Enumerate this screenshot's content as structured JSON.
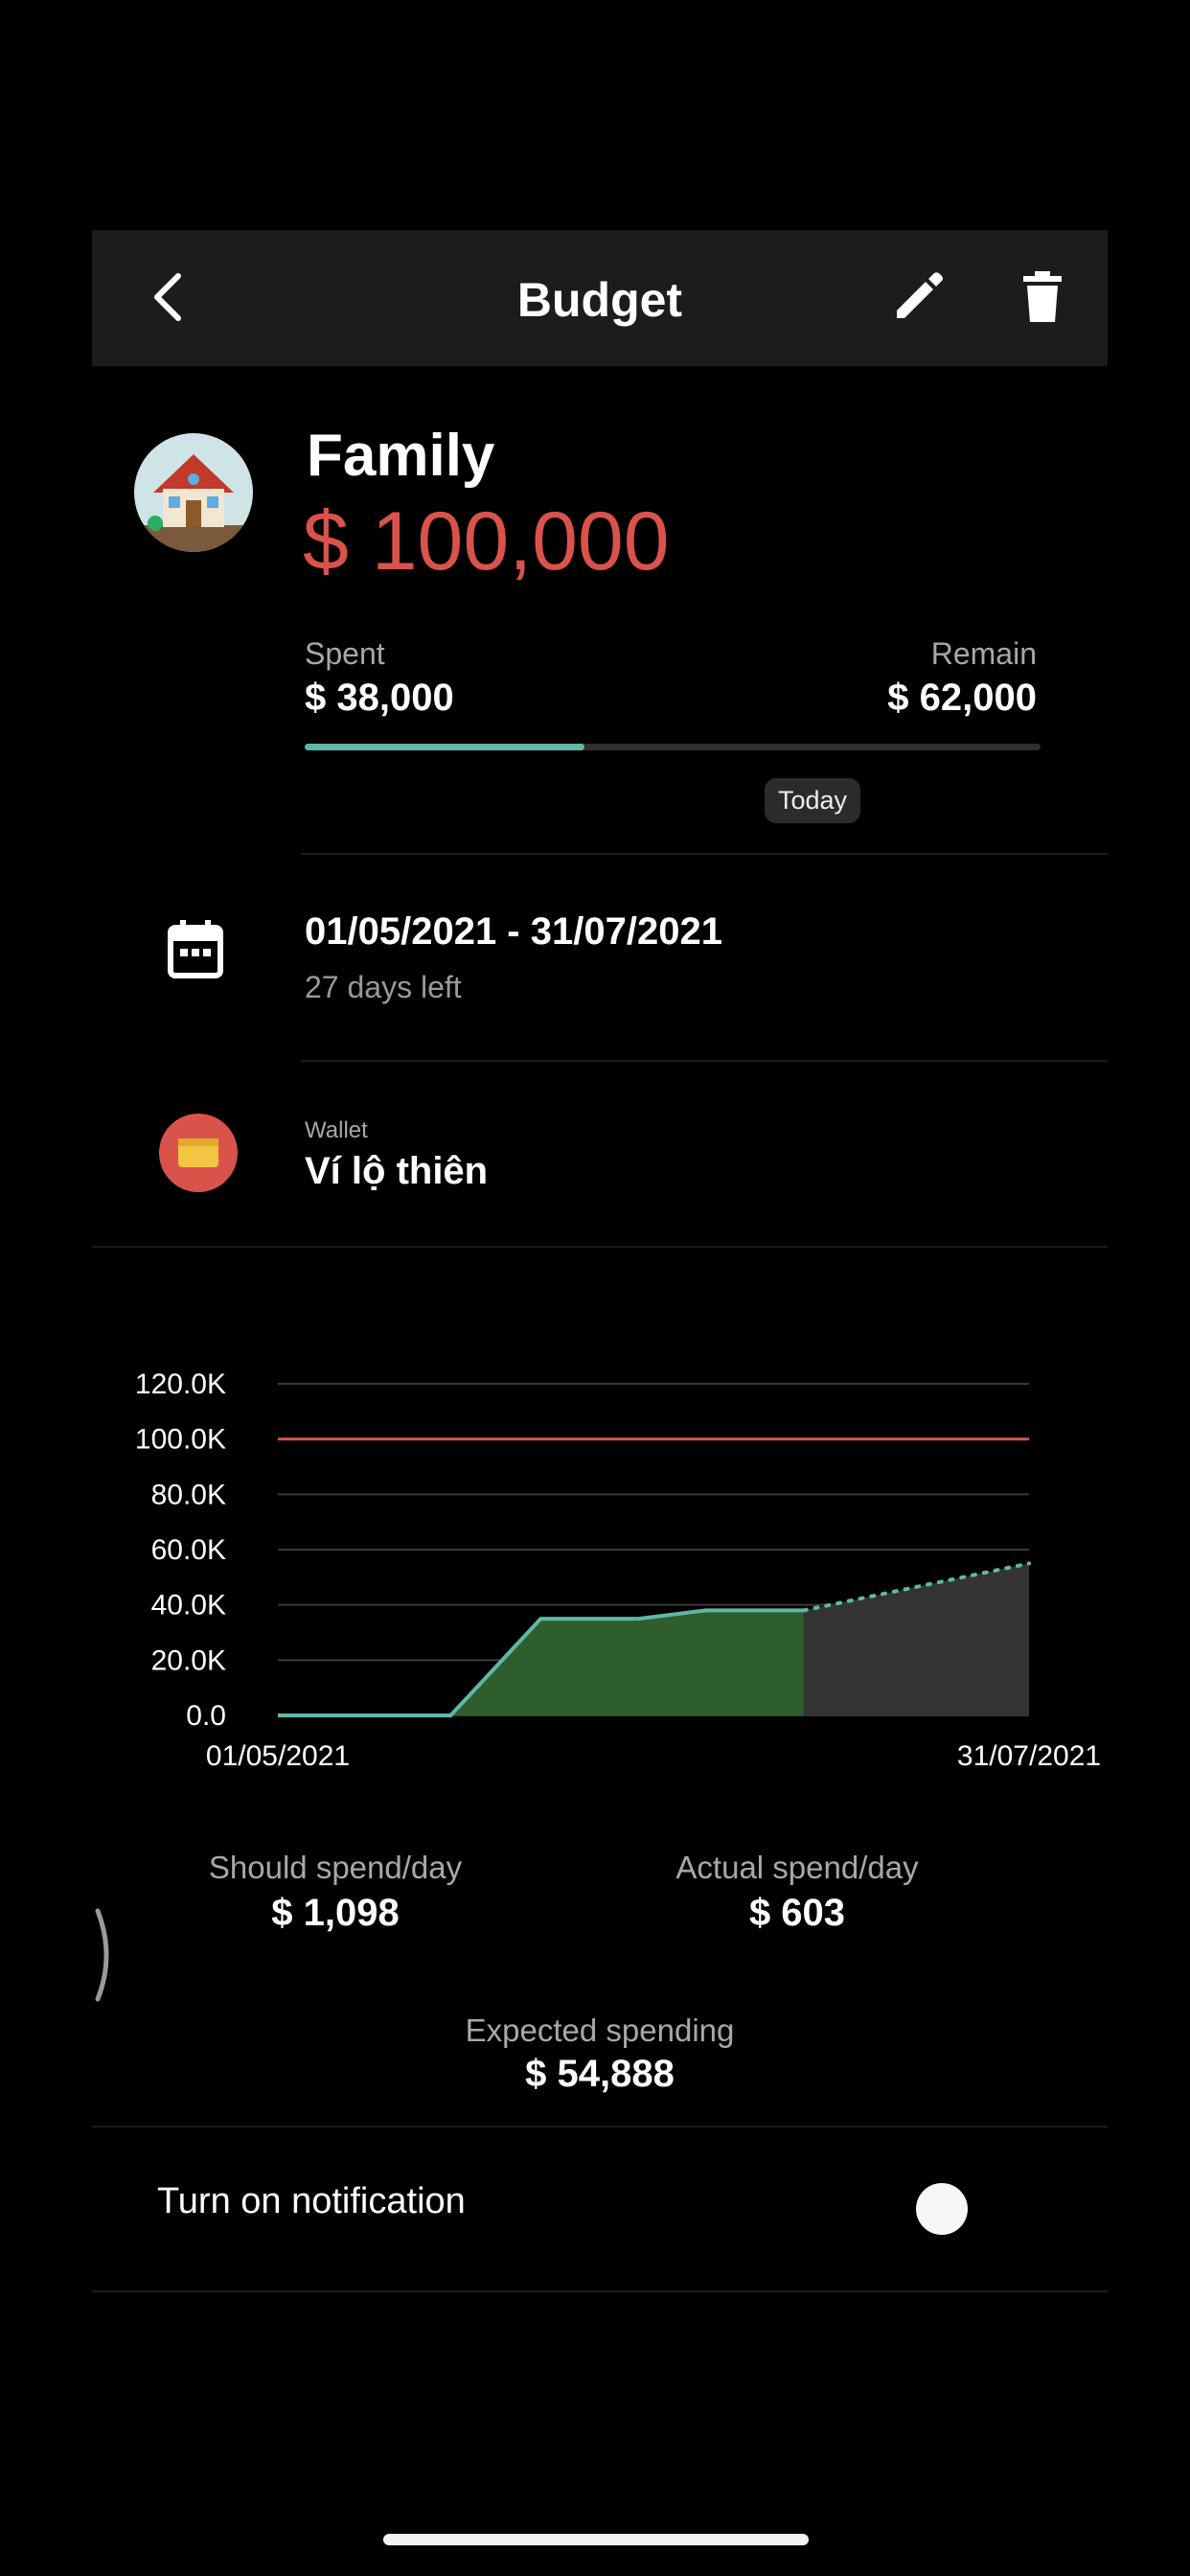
{
  "header": {
    "title": "Budget"
  },
  "budget": {
    "name": "Family",
    "amount": "$ 100,000",
    "spent_label": "Spent",
    "spent_value": "$ 38,000",
    "remain_label": "Remain",
    "remain_value": "$ 62,000",
    "progress_fraction": 0.38,
    "today_label": "Today"
  },
  "period": {
    "range": "01/05/2021 - 31/07/2021",
    "days_left": "27 days left"
  },
  "wallet": {
    "label": "Wallet",
    "name": "Ví lộ thiên"
  },
  "chart_data": {
    "type": "area",
    "x_start_label": "01/05/2021",
    "x_end_label": "31/07/2021",
    "y_ticks": [
      "0.0",
      "20.0K",
      "40.0K",
      "60.0K",
      "80.0K",
      "100.0K",
      "120.0K"
    ],
    "ylim": [
      0,
      120000
    ],
    "budget_line": 100000,
    "actual": {
      "x": [
        0,
        23,
        35,
        48,
        57,
        70
      ],
      "y": [
        0,
        0,
        35000,
        35000,
        38000,
        38000
      ]
    },
    "forecast": {
      "x": [
        70,
        100
      ],
      "y": [
        38000,
        55000
      ]
    },
    "xlim": [
      0,
      100
    ],
    "grid": true
  },
  "stats": {
    "should_label": "Should spend/day",
    "should_value": "$ 1,098",
    "actual_label": "Actual spend/day",
    "actual_value": "$ 603",
    "expected_label": "Expected spending",
    "expected_value": "$ 54,888"
  },
  "notification": {
    "label": "Turn on notification"
  },
  "colors": {
    "accent": "#5fb7a8",
    "amount": "#d9534a",
    "area": "#2e5e2c",
    "forecast_area": "#333333"
  }
}
